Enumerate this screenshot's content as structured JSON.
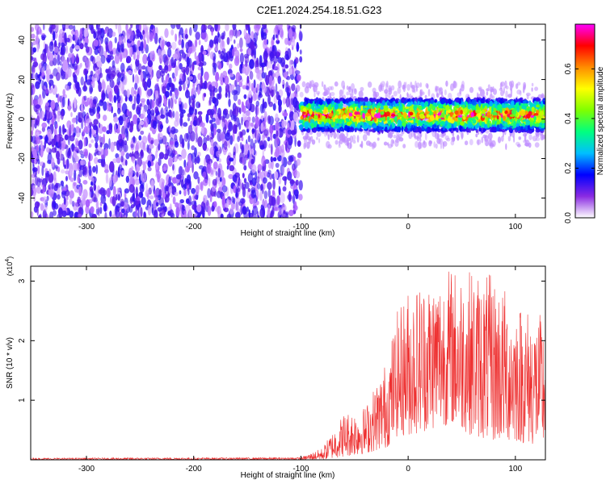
{
  "figure_title": "C2E1.2024.254.18.51.G23",
  "chart_data": [
    {
      "type": "heatmap",
      "title": "C2E1.2024.254.18.51.G23",
      "xlabel": "Height of straight line (km)",
      "ylabel": "Frequency (Hz)",
      "xlim": [
        -352,
        128
      ],
      "ylim": [
        -50,
        48
      ],
      "xticks": [
        -300,
        -200,
        -100,
        0,
        100
      ],
      "xtick_labels": [
        "-300",
        "-200",
        "-100",
        "0",
        "100"
      ],
      "yticks": [
        -40,
        -20,
        0,
        20,
        40
      ],
      "ytick_labels": [
        "-40",
        "-20",
        "0",
        "20",
        "40"
      ],
      "colorbar": {
        "label": "Normalized spectral amplitude",
        "range": [
          0.0,
          0.78
        ],
        "ticks": [
          0.0,
          0.2,
          0.4,
          0.6
        ],
        "tick_labels": [
          "0.0",
          "0.2",
          "0.4",
          "0.6"
        ],
        "colormap": [
          "#ffffff",
          "#8a2be2",
          "#0000ff",
          "#00bfff",
          "#00ff7f",
          "#7fff00",
          "#ffff00",
          "#ff8c00",
          "#ff0000",
          "#ff00ff"
        ]
      },
      "regions": [
        {
          "x_range": [
            -352,
            -100
          ],
          "freq_range": [
            -50,
            48
          ],
          "description": "broadband noise",
          "amplitude_range": [
            0.02,
            0.2
          ]
        },
        {
          "x_range": [
            -100,
            128
          ],
          "freq_center": 2,
          "freq_halfwidth": 8,
          "description": "narrow band signal",
          "amplitude_range": [
            0.1,
            0.78
          ]
        }
      ]
    },
    {
      "type": "line",
      "xlabel": "Height of straight line (km)",
      "ylabel": "SNR (10 * v/v)",
      "y_multiplier": "(x10^4)",
      "xlim": [
        -352,
        128
      ],
      "ylim": [
        0,
        3.25
      ],
      "xticks": [
        -300,
        -200,
        -100,
        0,
        100
      ],
      "xtick_labels": [
        "-300",
        "-200",
        "-100",
        "0",
        "100"
      ],
      "yticks": [
        1,
        2,
        3
      ],
      "ytick_labels": [
        "1",
        "2",
        "3"
      ],
      "color": "#ee3030",
      "envelope": {
        "x": [
          -352,
          -100,
          -80,
          -60,
          -40,
          -20,
          -10,
          0,
          20,
          40,
          60,
          80,
          100,
          128
        ],
        "y_max": [
          0.03,
          0.04,
          0.2,
          0.8,
          0.9,
          1.7,
          2.5,
          2.9,
          3.1,
          3.25,
          3.2,
          3.1,
          2.7,
          2.4
        ],
        "y_min": [
          0.0,
          0.0,
          0.0,
          0.05,
          0.1,
          0.2,
          0.4,
          0.4,
          0.5,
          0.6,
          0.4,
          0.3,
          0.3,
          0.2
        ]
      }
    }
  ]
}
